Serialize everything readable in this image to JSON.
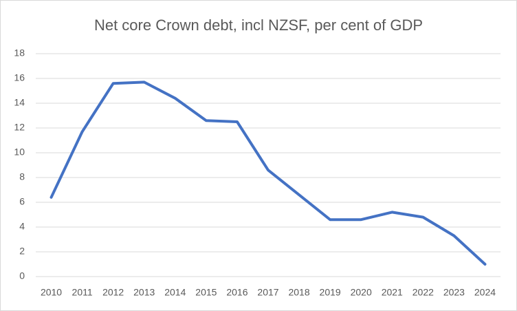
{
  "chart_data": {
    "type": "line",
    "title": "Net core Crown debt, incl NZSF, per cent of GDP",
    "categories": [
      "2010",
      "2011",
      "2012",
      "2013",
      "2014",
      "2015",
      "2016",
      "2017",
      "2018",
      "2019",
      "2020",
      "2021",
      "2022",
      "2023",
      "2024"
    ],
    "series": [
      {
        "name": "Net core Crown debt",
        "color": "#4472c4",
        "values": [
          6.4,
          11.7,
          15.6,
          15.7,
          14.4,
          12.6,
          12.5,
          8.6,
          6.6,
          4.6,
          4.6,
          5.2,
          4.8,
          3.3,
          1.0
        ]
      }
    ],
    "ylim": [
      0,
      18
    ],
    "yticks": [
      0,
      2,
      4,
      6,
      8,
      10,
      12,
      14,
      16,
      18
    ],
    "grid": true
  }
}
